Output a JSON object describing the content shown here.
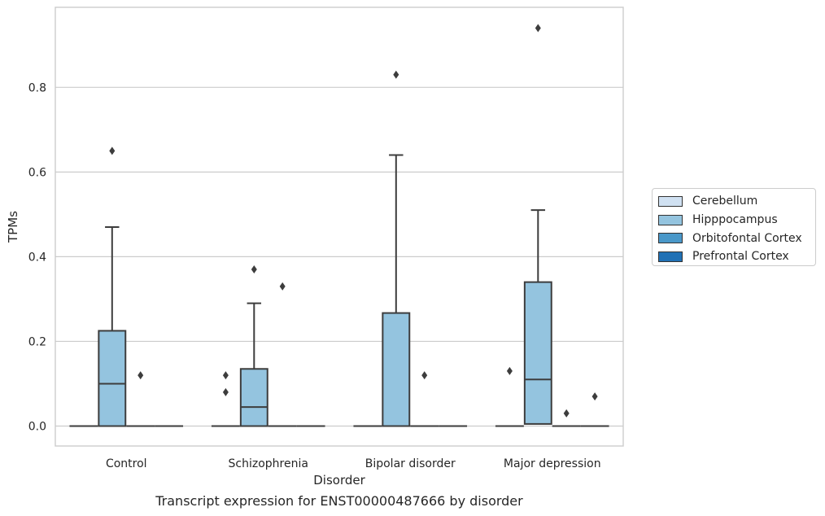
{
  "chart_data": {
    "type": "boxplot",
    "caption": "Transcript expression for ENST00000487666 by disorder",
    "xlabel": "Disorder",
    "ylabel": "TPMs",
    "ylim": [
      -0.045,
      0.99
    ],
    "yticks": [
      0.0,
      0.2,
      0.4,
      0.6,
      0.8
    ],
    "ytick_labels": [
      "0.0",
      "0.2",
      "0.4",
      "0.6",
      "0.8"
    ],
    "grid": "horizontal",
    "legend_position": "right",
    "categories": [
      "Control",
      "Schizophrenia",
      "Bipolar disorder",
      "Major depression"
    ],
    "series": [
      {
        "name": "Cerebellum",
        "color": "#d0e1f2",
        "boxes": [
          {
            "q1": 0,
            "median": 0,
            "q3": 0,
            "whislo": 0,
            "whishi": 0,
            "fliers": []
          },
          {
            "q1": 0,
            "median": 0,
            "q3": 0,
            "whislo": 0,
            "whishi": 0,
            "fliers": []
          },
          {
            "q1": 0,
            "median": 0,
            "q3": 0,
            "whislo": 0,
            "whishi": 0,
            "fliers": []
          },
          {
            "q1": 0,
            "median": 0,
            "q3": 0,
            "whislo": 0,
            "whishi": 0,
            "fliers": [
              0.13
            ]
          }
        ]
      },
      {
        "name": "Hipppocampus",
        "color": "#94c4df",
        "boxes": [
          {
            "q1": 0,
            "median": 0.1,
            "q3": 0.225,
            "whislo": 0,
            "whishi": 0.47,
            "fliers": [
              0.65
            ]
          },
          {
            "q1": 0,
            "median": 0.045,
            "q3": 0.135,
            "whislo": 0,
            "whishi": 0.29,
            "fliers": [
              0.37
            ]
          },
          {
            "q1": 0,
            "median": 0,
            "q3": 0.267,
            "whislo": 0,
            "whishi": 0.64,
            "fliers": [
              0.83
            ]
          },
          {
            "q1": 0.005,
            "median": 0.11,
            "q3": 0.34,
            "whislo": 0,
            "whishi": 0.51,
            "fliers": [
              0.94
            ]
          }
        ]
      },
      {
        "name": "Orbitofontal Cortex",
        "color": "#4a98c9",
        "boxes": [
          {
            "q1": 0,
            "median": 0,
            "q3": 0,
            "whislo": 0,
            "whishi": 0,
            "fliers": [
              0.12
            ]
          },
          {
            "q1": 0,
            "median": 0,
            "q3": 0,
            "whislo": 0,
            "whishi": 0,
            "fliers": [
              0.33
            ]
          },
          {
            "q1": 0,
            "median": 0,
            "q3": 0,
            "whislo": 0,
            "whishi": 0,
            "fliers": [
              0.12
            ]
          },
          {
            "q1": 0,
            "median": 0,
            "q3": 0,
            "whislo": 0,
            "whishi": 0,
            "fliers": [
              0.03
            ]
          }
        ]
      },
      {
        "name": "Prefrontal Cortex",
        "color": "#2171b5",
        "boxes": [
          {
            "q1": 0,
            "median": 0,
            "q3": 0,
            "whislo": 0,
            "whishi": 0,
            "fliers": []
          },
          {
            "q1": 0,
            "median": 0,
            "q3": 0,
            "whislo": 0,
            "whishi": 0,
            "fliers": []
          },
          {
            "q1": 0,
            "median": 0,
            "q3": 0,
            "whislo": 0,
            "whishi": 0,
            "fliers": []
          },
          {
            "q1": 0,
            "median": 0,
            "q3": 0,
            "whislo": 0,
            "whishi": 0,
            "fliers": [
              0.07
            ]
          }
        ]
      }
    ],
    "extra_fliers": [
      {
        "category": "Schizophrenia",
        "series": "Cerebellum",
        "values": [
          0.12,
          0.08
        ]
      }
    ]
  }
}
